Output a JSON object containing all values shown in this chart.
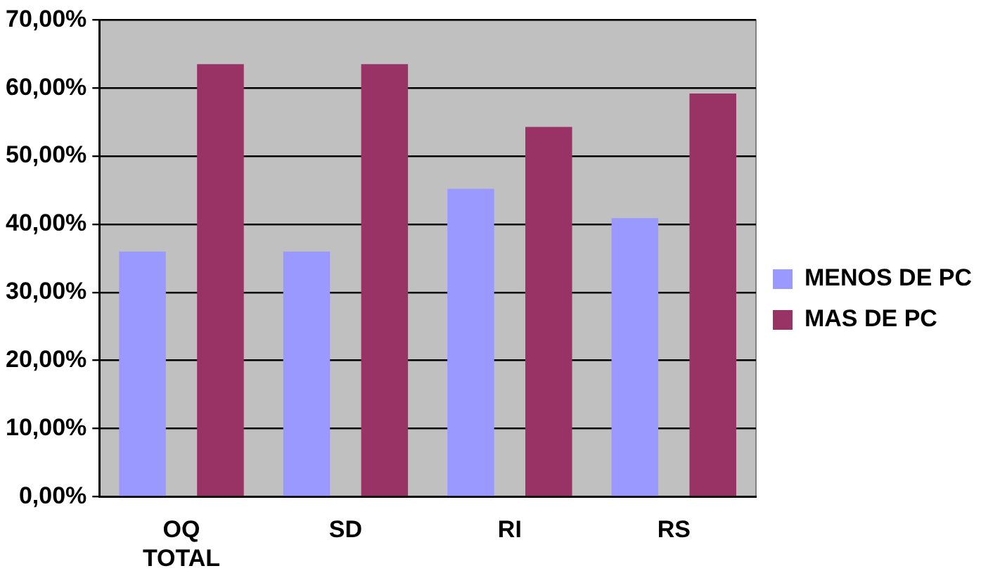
{
  "chart_data": {
    "type": "bar",
    "categories": [
      "OQ TOTAL",
      "SD",
      "RI",
      "RS"
    ],
    "series": [
      {
        "name": "MENOS DE PC",
        "color": "#9999ff",
        "values": [
          36.0,
          36.0,
          45.2,
          40.9
        ]
      },
      {
        "name": "MAS DE PC",
        "color": "#993366",
        "values": [
          63.5,
          63.5,
          54.3,
          59.2
        ]
      }
    ],
    "ylim": [
      0,
      70
    ],
    "yticks": [
      {
        "value": 0,
        "label": "0,00%"
      },
      {
        "value": 10,
        "label": "10,00%"
      },
      {
        "value": 20,
        "label": "20,00%"
      },
      {
        "value": 30,
        "label": "30,00%"
      },
      {
        "value": 40,
        "label": "40,00%"
      },
      {
        "value": 50,
        "label": "50,00%"
      },
      {
        "value": 60,
        "label": "60,00%"
      },
      {
        "value": 70,
        "label": "70,00%"
      }
    ],
    "grid": "y",
    "legend": "right"
  }
}
